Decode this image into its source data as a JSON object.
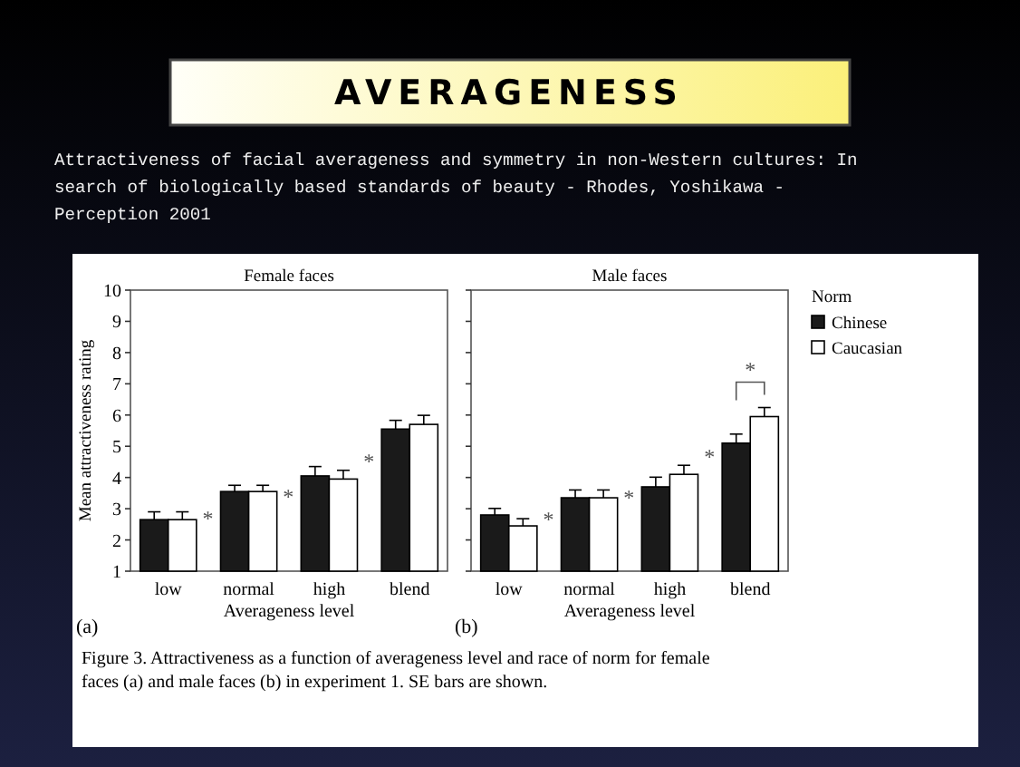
{
  "chart_data": [
    {
      "type": "bar",
      "title": "Female faces",
      "xlabel": "Averageness level",
      "ylabel": "Mean attractiveness rating",
      "categories": [
        "low",
        "normal",
        "high",
        "blend"
      ],
      "series": [
        {
          "color": "#1a1a1a",
          "values": [
            2.65,
            3.55,
            4.05,
            5.55
          ],
          "errors": [
            0.25,
            0.2,
            0.3,
            0.28
          ]
        },
        {
          "color": "#ffffff",
          "values": [
            2.65,
            3.55,
            3.95,
            5.7
          ],
          "errors": [
            0.25,
            0.2,
            0.28,
            0.29
          ]
        }
      ],
      "ylim": [
        1,
        10
      ],
      "yticks": [
        1,
        2,
        3,
        4,
        5,
        6,
        7,
        8,
        9,
        10
      ],
      "grid": false,
      "legend": false,
      "annotations": [
        "AVERAGENESS",
        "Attractiveness of facial averageness and symmetry in non-Western cultures: In search of biologically based standards of beauty  - Rhodes, Yoshikawa - Perception 2001",
        "(a)",
        "Figure 3. Attractiveness as a function of averageness level and race of norm for female faces (a) and male faces (b) in experiment 1. SE bars are shown.",
        "*",
        "*",
        "*"
      ]
    },
    {
      "type": "bar",
      "title": "Male faces",
      "xlabel": "Averageness level",
      "legend_title": "Norm",
      "categories": [
        "low",
        "normal",
        "high",
        "blend"
      ],
      "series": [
        {
          "name": "Chinese",
          "color": "#1a1a1a",
          "values": [
            2.8,
            3.35,
            3.7,
            5.1
          ],
          "errors": [
            0.21,
            0.25,
            0.31,
            0.29
          ]
        },
        {
          "name": "Caucasian",
          "color": "#ffffff",
          "values": [
            2.45,
            3.35,
            4.1,
            5.95
          ],
          "errors": [
            0.23,
            0.25,
            0.29,
            0.29
          ]
        }
      ],
      "ylim": [
        1,
        10
      ],
      "yticks": [
        1,
        2,
        3,
        4,
        5,
        6,
        7,
        8,
        9,
        10
      ],
      "tick_labels": "x",
      "grid": false,
      "legend": "right",
      "annotations": [
        "(b)",
        "*",
        "*",
        "*",
        "*"
      ]
    }
  ]
}
